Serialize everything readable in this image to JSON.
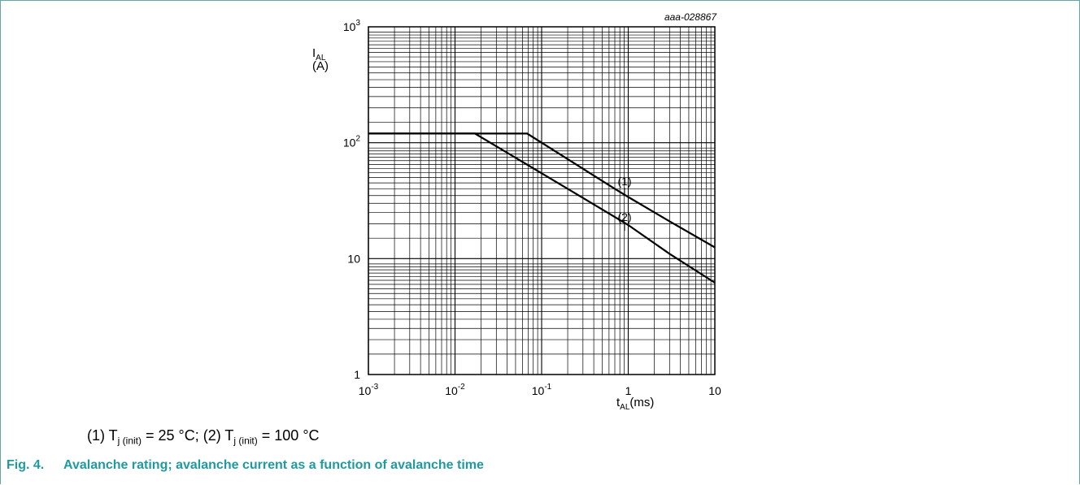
{
  "chart_data": {
    "type": "line",
    "x_scale": "log",
    "y_scale": "log",
    "xlim": [
      0.001,
      10
    ],
    "ylim": [
      1,
      1000
    ],
    "grid": true,
    "figure_code": "aaa-028867",
    "xlabel": {
      "main": "t",
      "sub": "AL",
      "unit": "(ms)"
    },
    "ylabel": {
      "main": "I",
      "sub": "AL",
      "unit": "(A)"
    },
    "x_ticks": [
      {
        "base": "10",
        "exp": "-3"
      },
      {
        "base": "10",
        "exp": "-2"
      },
      {
        "base": "10",
        "exp": "-1"
      },
      {
        "base": "1",
        "exp": ""
      },
      {
        "base": "10",
        "exp": ""
      }
    ],
    "y_ticks": [
      {
        "base": "1",
        "exp": ""
      },
      {
        "base": "10",
        "exp": ""
      },
      {
        "base": "10",
        "exp": "2"
      },
      {
        "base": "10",
        "exp": "3"
      }
    ],
    "series": [
      {
        "name": "(1)",
        "x": [
          0.001,
          0.068,
          0.7,
          1,
          3,
          10
        ],
        "y": [
          120,
          120,
          40,
          34,
          21,
          12.5
        ]
      },
      {
        "name": "(2)",
        "x": [
          0.001,
          0.017,
          0.2,
          1,
          3,
          10
        ],
        "y": [
          120,
          120,
          40,
          19.5,
          11,
          6.2
        ]
      }
    ]
  },
  "legend": {
    "p1": "(1) T",
    "s1": "j (init)",
    "p2": " = 25 °C; (2) T",
    "s2": "j (init)",
    "p3": " = 100 °C"
  },
  "caption": {
    "number": "Fig. 4.",
    "text": "Avalanche rating; avalanche current as a function of avalanche time"
  }
}
